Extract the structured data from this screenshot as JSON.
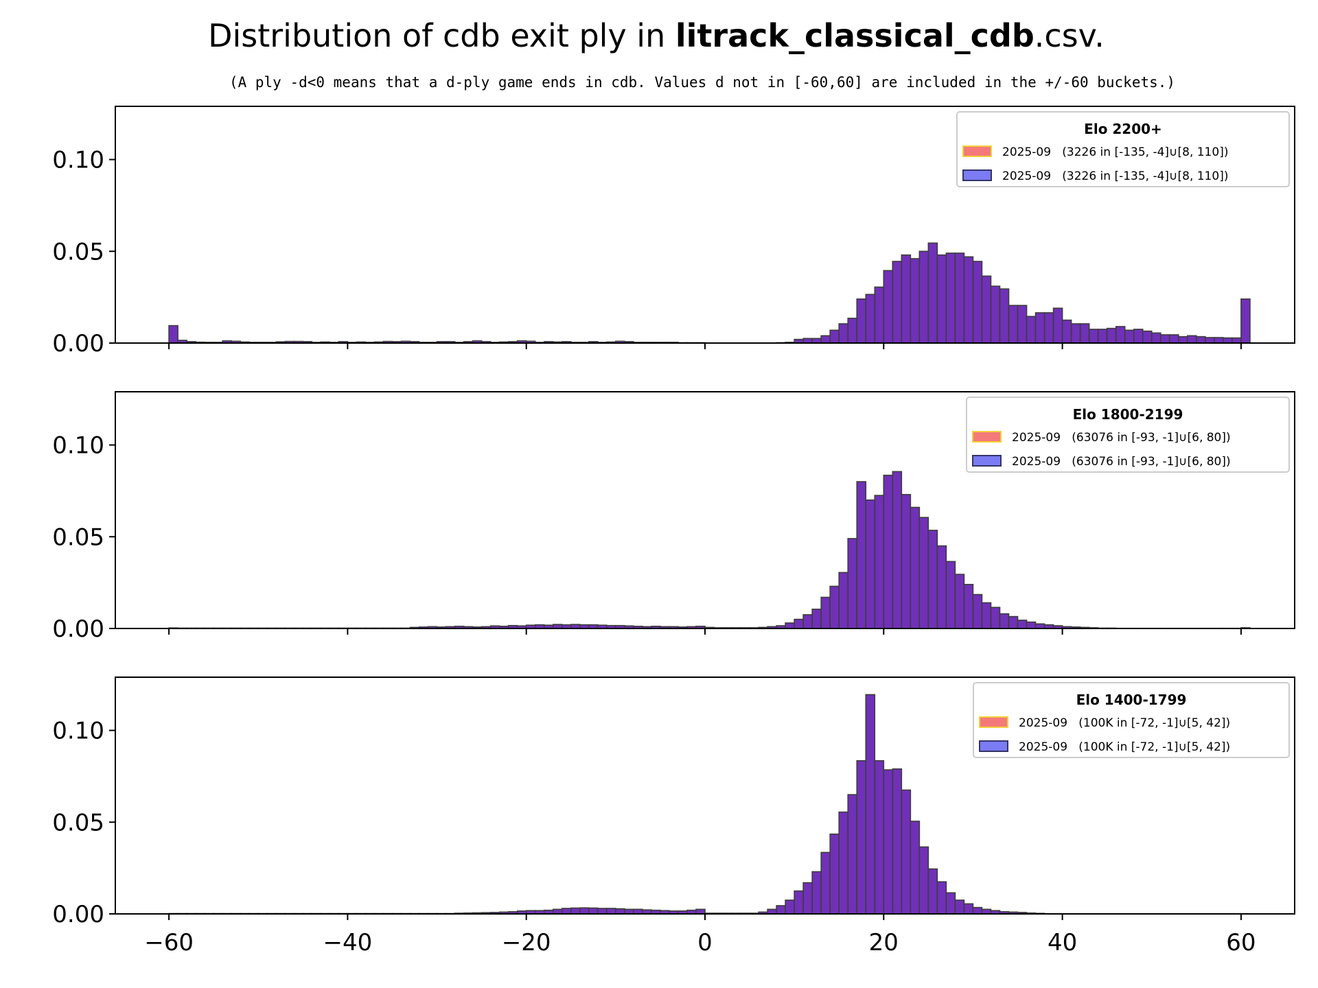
{
  "title": {
    "prefix": "Distribution of cdb exit ply in ",
    "bold": "litrack_classical_cdb",
    "suffix": ".csv."
  },
  "subtitle": "(A ply -d<0 means that a d-ply game ends in cdb. Values d not in [-60,60] are included in the +/-60 buckets.)",
  "colors": {
    "bar_fill": "#7030b8",
    "bar_edge": "#3d3d3d",
    "legend_red": "#f47a7a",
    "legend_red_edge": "#f2d13a",
    "legend_blue": "#7b7bf3",
    "legend_blue_edge": "#333366"
  },
  "chart_data": [
    {
      "type": "bar",
      "legend_title": "Elo 2200+",
      "series": [
        {
          "name": "2025-09   (3226 in [-135, -4]∪[8, 110])",
          "color": "red"
        },
        {
          "name": "2025-09   (3226 in [-135, -4]∪[8, 110])",
          "color": "blue"
        }
      ],
      "x": [
        -60,
        -59,
        -58,
        -57,
        -56,
        -55,
        -54,
        -53,
        -52,
        -51,
        -50,
        -49,
        -48,
        -47,
        -46,
        -45,
        -44,
        -43,
        -42,
        -41,
        -40,
        -39,
        -38,
        -37,
        -36,
        -35,
        -34,
        -33,
        -32,
        -31,
        -30,
        -29,
        -28,
        -27,
        -26,
        -25,
        -24,
        -23,
        -22,
        -21,
        -20,
        -19,
        -18,
        -17,
        -16,
        -15,
        -14,
        -13,
        -12,
        -11,
        -10,
        -9,
        -8,
        -7,
        -6,
        -5,
        -4,
        -3,
        -2,
        -1,
        0,
        1,
        2,
        3,
        4,
        5,
        6,
        7,
        8,
        9,
        10,
        11,
        12,
        13,
        14,
        15,
        16,
        17,
        18,
        19,
        20,
        21,
        22,
        23,
        24,
        25,
        26,
        27,
        28,
        29,
        30,
        31,
        32,
        33,
        34,
        35,
        36,
        37,
        38,
        39,
        40,
        41,
        42,
        43,
        44,
        45,
        46,
        47,
        48,
        49,
        50,
        51,
        52,
        53,
        54,
        55,
        56,
        57,
        58,
        59,
        60
      ],
      "values": [
        0.0095,
        0.0015,
        0.0008,
        0.0005,
        0.0004,
        0.0004,
        0.0012,
        0.001,
        0.0006,
        0.0004,
        0.0004,
        0.0004,
        0.0007,
        0.0009,
        0.0009,
        0.0008,
        0.0004,
        0.0006,
        0.0004,
        0.0008,
        0.0004,
        0.0006,
        0.0004,
        0.0006,
        0.0009,
        0.0008,
        0.001,
        0.0008,
        0.0004,
        0.0004,
        0.0008,
        0.0008,
        0.0004,
        0.0008,
        0.0012,
        0.0008,
        0.0004,
        0.0006,
        0.0008,
        0.0012,
        0.001,
        0.0004,
        0.0008,
        0.0006,
        0.0008,
        0.0004,
        0.0004,
        0.0008,
        0.0004,
        0.0006,
        0.001,
        0.0008,
        0.0004,
        0.0004,
        0.0004,
        0.0004,
        0.0004,
        0.0002,
        0.0002,
        0.0002,
        0.0,
        0.0,
        0.0,
        0.0,
        0.0,
        0.0,
        0.0,
        0.0,
        0.0002,
        0.0004,
        0.002,
        0.0025,
        0.0025,
        0.004,
        0.007,
        0.0105,
        0.0135,
        0.024,
        0.0265,
        0.0305,
        0.0395,
        0.0445,
        0.048,
        0.046,
        0.05,
        0.0545,
        0.048,
        0.049,
        0.049,
        0.047,
        0.0445,
        0.0365,
        0.031,
        0.0295,
        0.0205,
        0.0205,
        0.0145,
        0.0165,
        0.0165,
        0.019,
        0.0125,
        0.0105,
        0.0105,
        0.0075,
        0.0075,
        0.008,
        0.009,
        0.007,
        0.0075,
        0.0065,
        0.0055,
        0.0045,
        0.0045,
        0.0035,
        0.004,
        0.0035,
        0.003,
        0.003,
        0.0028,
        0.0028,
        0.024
      ],
      "ylim": [
        0,
        0.129
      ],
      "yticks": [
        "0.00",
        "0.05",
        "0.10"
      ],
      "ytick_values": [
        0,
        0.05,
        0.1
      ]
    },
    {
      "type": "bar",
      "legend_title": "Elo 1800-2199",
      "series": [
        {
          "name": "2025-09   (63076 in [-93, -1]∪[6, 80])",
          "color": "red"
        },
        {
          "name": "2025-09   (63076 in [-93, -1]∪[6, 80])",
          "color": "blue"
        }
      ],
      "x": [
        -60,
        -59,
        -58,
        -57,
        -56,
        -55,
        -54,
        -53,
        -52,
        -51,
        -50,
        -49,
        -48,
        -47,
        -46,
        -45,
        -44,
        -43,
        -42,
        -41,
        -40,
        -39,
        -38,
        -37,
        -36,
        -35,
        -34,
        -33,
        -32,
        -31,
        -30,
        -29,
        -28,
        -27,
        -26,
        -25,
        -24,
        -23,
        -22,
        -21,
        -20,
        -19,
        -18,
        -17,
        -16,
        -15,
        -14,
        -13,
        -12,
        -11,
        -10,
        -9,
        -8,
        -7,
        -6,
        -5,
        -4,
        -3,
        -2,
        -1,
        0,
        1,
        2,
        3,
        4,
        5,
        6,
        7,
        8,
        9,
        10,
        11,
        12,
        13,
        14,
        15,
        16,
        17,
        18,
        19,
        20,
        21,
        22,
        23,
        24,
        25,
        26,
        27,
        28,
        29,
        30,
        31,
        32,
        33,
        34,
        35,
        36,
        37,
        38,
        39,
        40,
        41,
        42,
        43,
        44,
        45,
        46,
        47,
        48,
        49,
        50,
        51,
        52,
        53,
        54,
        55,
        56,
        57,
        58,
        59,
        60
      ],
      "values": [
        0.0003,
        0.0002,
        0.0002,
        0.0002,
        0.0002,
        0.0002,
        0.0002,
        0.0002,
        0.0002,
        0.0002,
        0.0002,
        0.0002,
        0.0002,
        0.0002,
        0.0002,
        0.0002,
        0.0002,
        0.0002,
        0.0002,
        0.0002,
        0.0002,
        0.0002,
        0.0002,
        0.0002,
        0.0002,
        0.0002,
        0.0002,
        0.0006,
        0.0008,
        0.001,
        0.0008,
        0.001,
        0.0012,
        0.001,
        0.0008,
        0.001,
        0.0014,
        0.0012,
        0.0016,
        0.0014,
        0.0018,
        0.002,
        0.0018,
        0.0022,
        0.002,
        0.0022,
        0.002,
        0.002,
        0.0018,
        0.0016,
        0.0016,
        0.0014,
        0.0012,
        0.001,
        0.0012,
        0.001,
        0.001,
        0.0008,
        0.001,
        0.0012,
        0.0006,
        0.0004,
        0.0004,
        0.0004,
        0.0004,
        0.0004,
        0.0006,
        0.001,
        0.0015,
        0.003,
        0.005,
        0.0075,
        0.0105,
        0.017,
        0.023,
        0.0305,
        0.049,
        0.08,
        0.07,
        0.0725,
        0.0835,
        0.0855,
        0.073,
        0.066,
        0.0605,
        0.0535,
        0.045,
        0.0365,
        0.0295,
        0.024,
        0.0185,
        0.014,
        0.0115,
        0.008,
        0.0065,
        0.0045,
        0.0035,
        0.0025,
        0.002,
        0.0015,
        0.001,
        0.0008,
        0.0006,
        0.0004,
        0.0002,
        0.0002,
        0.0001,
        0.0001,
        0.0001,
        0.0001,
        0.0001,
        0.0001,
        0.0001,
        0.0001,
        0.0001,
        0.0001,
        0.0001,
        0.0001,
        0.0001,
        0.0001,
        0.0004
      ],
      "ylim": [
        0,
        0.129
      ],
      "yticks": [
        "0.00",
        "0.05",
        "0.10"
      ],
      "ytick_values": [
        0,
        0.05,
        0.1
      ]
    },
    {
      "type": "bar",
      "legend_title": "Elo 1400-1799",
      "series": [
        {
          "name": "2025-09   (100K in [-72, -1]∪[5, 42])",
          "color": "red"
        },
        {
          "name": "2025-09   (100K in [-72, -1]∪[5, 42])",
          "color": "blue"
        }
      ],
      "x": [
        -60,
        -59,
        -58,
        -57,
        -56,
        -55,
        -54,
        -53,
        -52,
        -51,
        -50,
        -49,
        -48,
        -47,
        -46,
        -45,
        -44,
        -43,
        -42,
        -41,
        -40,
        -39,
        -38,
        -37,
        -36,
        -35,
        -34,
        -33,
        -32,
        -31,
        -30,
        -29,
        -28,
        -27,
        -26,
        -25,
        -24,
        -23,
        -22,
        -21,
        -20,
        -19,
        -18,
        -17,
        -16,
        -15,
        -14,
        -13,
        -12,
        -11,
        -10,
        -9,
        -8,
        -7,
        -6,
        -5,
        -4,
        -3,
        -2,
        -1,
        0,
        1,
        2,
        3,
        4,
        5,
        6,
        7,
        8,
        9,
        10,
        11,
        12,
        13,
        14,
        15,
        16,
        17,
        18,
        19,
        20,
        21,
        22,
        23,
        24,
        25,
        26,
        27,
        28,
        29,
        30,
        31,
        32,
        33,
        34,
        35,
        36,
        37,
        38,
        39,
        40,
        41,
        42,
        43,
        44,
        45,
        46,
        47,
        48,
        49,
        50,
        51,
        52,
        53,
        54,
        55,
        56,
        57,
        58,
        59,
        60
      ],
      "values": [
        0.0002,
        0.0002,
        0.0002,
        0.0002,
        0.0002,
        0.0002,
        0.0002,
        0.0002,
        0.0002,
        0.0002,
        0.0002,
        0.0002,
        0.0002,
        0.0002,
        0.0002,
        0.0002,
        0.0002,
        0.0002,
        0.0002,
        0.0002,
        0.0002,
        0.0002,
        0.0002,
        0.0002,
        0.0002,
        0.0002,
        0.0002,
        0.0002,
        0.0002,
        0.0002,
        0.0002,
        0.0002,
        0.0004,
        0.0005,
        0.0006,
        0.0007,
        0.0008,
        0.001,
        0.0012,
        0.0016,
        0.0018,
        0.0018,
        0.002,
        0.0025,
        0.003,
        0.0032,
        0.0033,
        0.0032,
        0.003,
        0.003,
        0.0028,
        0.0025,
        0.0025,
        0.0022,
        0.002,
        0.0018,
        0.0016,
        0.0016,
        0.002,
        0.0025,
        0.0004,
        0.0004,
        0.0004,
        0.0004,
        0.0004,
        0.0004,
        0.001,
        0.0025,
        0.0045,
        0.0075,
        0.0125,
        0.017,
        0.023,
        0.0335,
        0.0435,
        0.0555,
        0.065,
        0.0835,
        0.1195,
        0.0835,
        0.0785,
        0.079,
        0.0675,
        0.0505,
        0.0365,
        0.0245,
        0.0175,
        0.0115,
        0.0075,
        0.0055,
        0.0035,
        0.0025,
        0.0018,
        0.0012,
        0.001,
        0.0008,
        0.0005,
        0.0003,
        0.0001,
        0.0001,
        0.0001,
        0.0001,
        0.0001,
        0.0001,
        0.0001,
        0.0001,
        0.0001,
        0.0001,
        0.0001,
        0.0001,
        0.0001,
        0.0001,
        0.0001,
        0.0001,
        0.0001,
        0.0001,
        0.0001,
        0.0001,
        0.0001,
        0.0001,
        0.0001
      ],
      "ylim": [
        0,
        0.129
      ],
      "yticks": [
        "0.00",
        "0.05",
        "0.10"
      ],
      "ytick_values": [
        0,
        0.05,
        0.1
      ]
    }
  ],
  "xaxis": {
    "xlim": [
      -66,
      66
    ],
    "ticks": [
      "−60",
      "−40",
      "−20",
      "0",
      "20",
      "40",
      "60"
    ],
    "tick_values": [
      -60,
      -40,
      -20,
      0,
      20,
      40,
      60
    ]
  }
}
